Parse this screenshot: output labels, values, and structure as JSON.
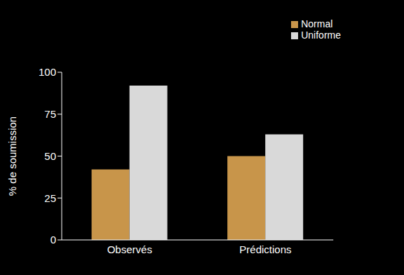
{
  "chart_data": {
    "type": "bar",
    "categories": [
      "Observés",
      "Prédictions"
    ],
    "series": [
      {
        "name": "Normal",
        "color": "#c8954a",
        "values": [
          42,
          50
        ]
      },
      {
        "name": "Uniforme",
        "color": "#d9d9d9",
        "values": [
          92,
          63
        ]
      }
    ],
    "y_label": "% de soumission",
    "ylim": [
      0,
      100
    ],
    "yticks": [
      0,
      25,
      50,
      75,
      100
    ],
    "grid": false,
    "legend": "upper right"
  }
}
